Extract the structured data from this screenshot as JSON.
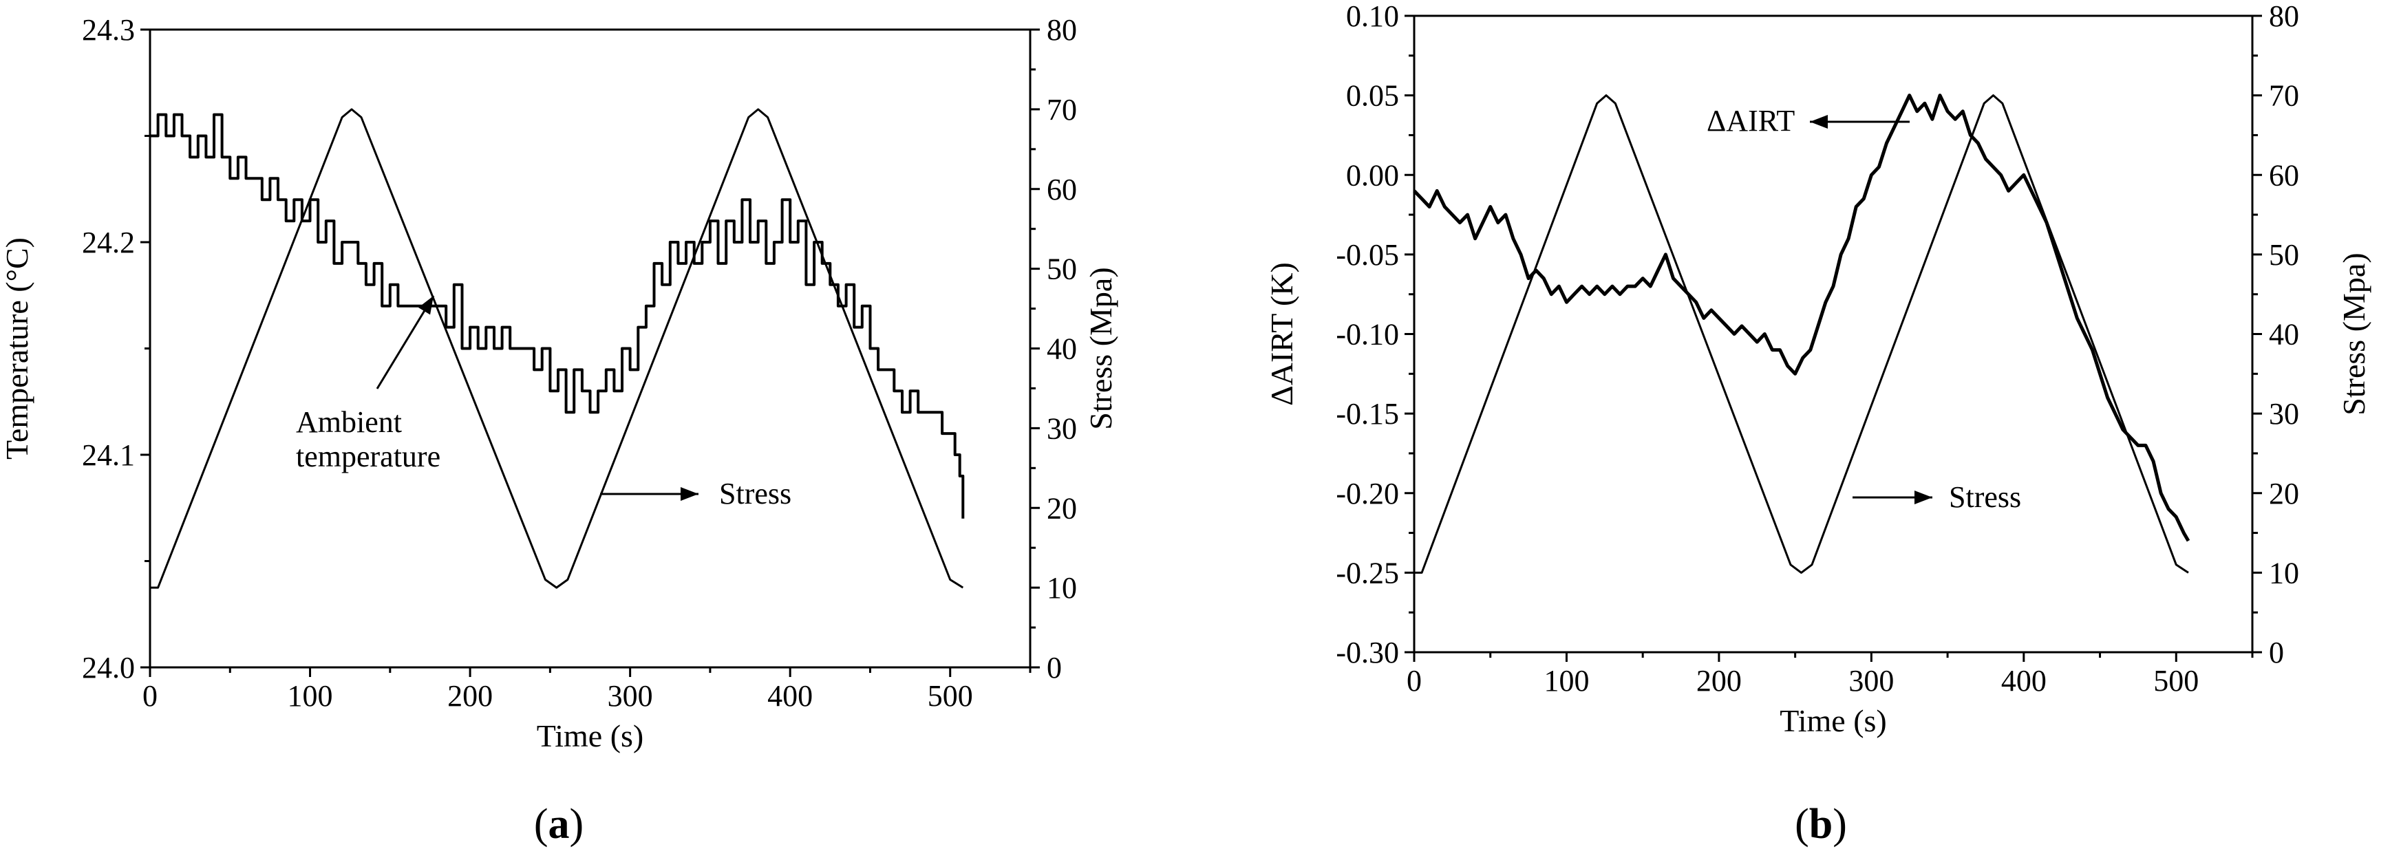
{
  "figure": {
    "panels": [
      {
        "label_open": "(",
        "label_letter": "a",
        "label_close": ")"
      },
      {
        "label_open": "(",
        "label_letter": "b",
        "label_close": ")"
      }
    ]
  },
  "chart_data": [
    {
      "type": "line",
      "panel": "a",
      "xlabel": "Time (s)",
      "ylabel": "Temperature (°C)",
      "y2label": "Stress (Mpa)",
      "xlim": [
        0,
        550
      ],
      "ylim": [
        24.0,
        24.3
      ],
      "y2lim": [
        0,
        80
      ],
      "x_ticks": [
        "0",
        "100",
        "200",
        "300",
        "400",
        "500"
      ],
      "y_ticks": [
        "24.0",
        "24.1",
        "24.2",
        "24.3"
      ],
      "y2_ticks": [
        "0",
        "10",
        "20",
        "30",
        "40",
        "50",
        "60",
        "70",
        "80"
      ],
      "annotations": [
        {
          "text_lines": [
            "Ambient",
            "temperature"
          ],
          "points_to_series": "Ambient temperature"
        },
        {
          "text": "Stress",
          "points_to_series": "Stress"
        }
      ],
      "series": [
        {
          "name": "Ambient temperature",
          "axis": "left",
          "x": [
            0,
            5,
            10,
            15,
            20,
            25,
            30,
            35,
            40,
            45,
            50,
            55,
            60,
            65,
            70,
            75,
            80,
            85,
            90,
            95,
            100,
            105,
            110,
            115,
            120,
            125,
            130,
            135,
            140,
            145,
            150,
            155,
            160,
            165,
            170,
            175,
            180,
            185,
            190,
            195,
            200,
            205,
            210,
            215,
            220,
            225,
            230,
            235,
            240,
            245,
            250,
            255,
            260,
            265,
            270,
            275,
            280,
            285,
            290,
            295,
            300,
            305,
            310,
            315,
            320,
            325,
            330,
            335,
            340,
            345,
            350,
            355,
            360,
            365,
            370,
            375,
            380,
            385,
            390,
            395,
            400,
            405,
            410,
            415,
            420,
            425,
            430,
            435,
            440,
            445,
            450,
            455,
            460,
            465,
            470,
            475,
            480,
            485,
            490,
            495,
            500,
            503,
            506,
            508
          ],
          "y": [
            24.25,
            24.26,
            24.25,
            24.26,
            24.25,
            24.24,
            24.25,
            24.24,
            24.26,
            24.24,
            24.23,
            24.24,
            24.23,
            24.23,
            24.22,
            24.23,
            24.22,
            24.21,
            24.22,
            24.21,
            24.22,
            24.2,
            24.21,
            24.19,
            24.2,
            24.2,
            24.19,
            24.18,
            24.19,
            24.17,
            24.18,
            24.17,
            24.17,
            24.17,
            24.17,
            24.17,
            24.17,
            24.16,
            24.18,
            24.15,
            24.16,
            24.15,
            24.16,
            24.15,
            24.16,
            24.15,
            24.15,
            24.15,
            24.14,
            24.15,
            24.13,
            24.14,
            24.12,
            24.14,
            24.13,
            24.12,
            24.13,
            24.14,
            24.13,
            24.15,
            24.14,
            24.16,
            24.17,
            24.19,
            24.18,
            24.2,
            24.19,
            24.2,
            24.19,
            24.2,
            24.21,
            24.19,
            24.21,
            24.2,
            24.22,
            24.2,
            24.21,
            24.19,
            24.2,
            24.22,
            24.2,
            24.21,
            24.18,
            24.2,
            24.19,
            24.18,
            24.17,
            24.18,
            24.16,
            24.17,
            24.15,
            24.14,
            24.14,
            24.13,
            24.12,
            24.13,
            24.12,
            24.12,
            24.12,
            24.11,
            24.11,
            24.1,
            24.09,
            24.07
          ]
        },
        {
          "name": "Stress",
          "axis": "right",
          "x": [
            0,
            5,
            120,
            126,
            132,
            247,
            254,
            261,
            374,
            380,
            386,
            500,
            508
          ],
          "y": [
            10,
            10,
            69,
            70,
            69,
            11,
            10,
            11,
            69,
            70,
            69,
            11,
            10
          ]
        }
      ]
    },
    {
      "type": "line",
      "panel": "b",
      "xlabel": "Time (s)",
      "ylabel": "ΔAIRT (K)",
      "y2label": "Stress (Mpa)",
      "xlim": [
        0,
        550
      ],
      "ylim": [
        -0.3,
        0.1
      ],
      "y2lim": [
        0,
        80
      ],
      "x_ticks": [
        "0",
        "100",
        "200",
        "300",
        "400",
        "500"
      ],
      "y_ticks": [
        "-0.30",
        "-0.25",
        "-0.20",
        "-0.15",
        "-0.10",
        "-0.05",
        "0.00",
        "0.05",
        "0.10"
      ],
      "y2_ticks": [
        "0",
        "10",
        "20",
        "30",
        "40",
        "50",
        "60",
        "70",
        "80"
      ],
      "annotations": [
        {
          "text": "ΔAIRT",
          "points_to_series": "ΔAIRT"
        },
        {
          "text": "Stress",
          "points_to_series": "Stress"
        }
      ],
      "series": [
        {
          "name": "ΔAIRT",
          "axis": "left",
          "x": [
            0,
            5,
            10,
            15,
            20,
            25,
            30,
            35,
            40,
            45,
            50,
            55,
            60,
            65,
            70,
            75,
            80,
            85,
            90,
            95,
            100,
            105,
            110,
            115,
            120,
            125,
            130,
            135,
            140,
            145,
            150,
            155,
            160,
            165,
            170,
            175,
            180,
            185,
            190,
            195,
            200,
            205,
            210,
            215,
            220,
            225,
            230,
            235,
            240,
            245,
            250,
            255,
            260,
            265,
            270,
            275,
            280,
            285,
            290,
            295,
            300,
            305,
            310,
            315,
            320,
            325,
            330,
            335,
            340,
            345,
            350,
            355,
            360,
            365,
            370,
            375,
            380,
            385,
            390,
            395,
            400,
            405,
            410,
            415,
            420,
            425,
            430,
            435,
            440,
            445,
            450,
            455,
            460,
            465,
            470,
            475,
            480,
            485,
            490,
            495,
            500,
            505,
            508
          ],
          "y": [
            -0.01,
            -0.015,
            -0.02,
            -0.01,
            -0.02,
            -0.025,
            -0.03,
            -0.025,
            -0.04,
            -0.03,
            -0.02,
            -0.03,
            -0.025,
            -0.04,
            -0.05,
            -0.065,
            -0.06,
            -0.065,
            -0.075,
            -0.07,
            -0.08,
            -0.075,
            -0.07,
            -0.075,
            -0.07,
            -0.075,
            -0.07,
            -0.075,
            -0.07,
            -0.07,
            -0.065,
            -0.07,
            -0.06,
            -0.05,
            -0.065,
            -0.07,
            -0.075,
            -0.08,
            -0.09,
            -0.085,
            -0.09,
            -0.095,
            -0.1,
            -0.095,
            -0.1,
            -0.105,
            -0.1,
            -0.11,
            -0.11,
            -0.12,
            -0.125,
            -0.115,
            -0.11,
            -0.095,
            -0.08,
            -0.07,
            -0.05,
            -0.04,
            -0.02,
            -0.015,
            0.0,
            0.005,
            0.02,
            0.03,
            0.04,
            0.05,
            0.04,
            0.045,
            0.035,
            0.05,
            0.04,
            0.035,
            0.04,
            0.025,
            0.02,
            0.01,
            0.005,
            0.0,
            -0.01,
            -0.005,
            0.0,
            -0.01,
            -0.02,
            -0.03,
            -0.045,
            -0.06,
            -0.075,
            -0.09,
            -0.1,
            -0.11,
            -0.125,
            -0.14,
            -0.15,
            -0.16,
            -0.165,
            -0.17,
            -0.17,
            -0.18,
            -0.2,
            -0.21,
            -0.215,
            -0.225,
            -0.23
          ]
        },
        {
          "name": "Stress",
          "axis": "right",
          "x": [
            0,
            5,
            120,
            126,
            132,
            247,
            254,
            261,
            374,
            380,
            386,
            500,
            508
          ],
          "y": [
            10,
            10,
            69,
            70,
            69,
            11,
            10,
            11,
            69,
            70,
            69,
            11,
            10
          ]
        }
      ]
    }
  ]
}
